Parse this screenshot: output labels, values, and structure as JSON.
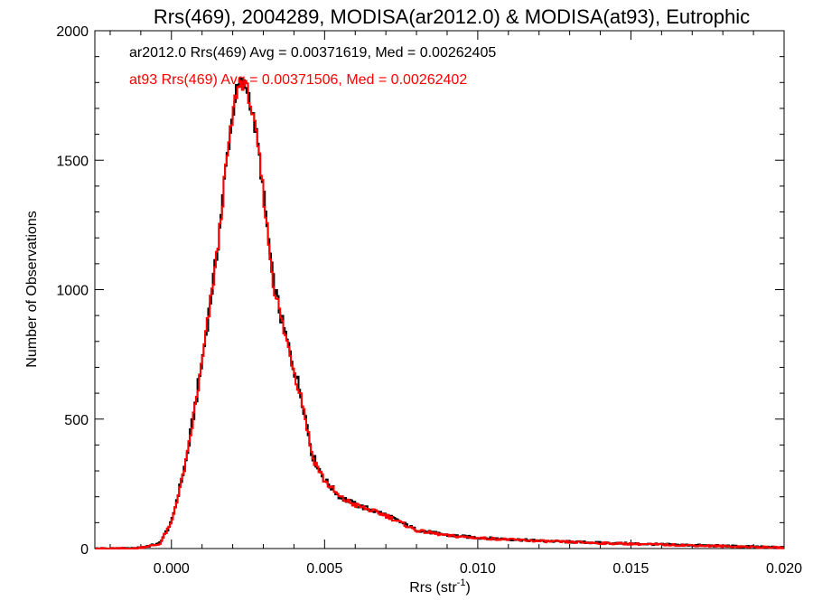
{
  "chart_data": {
    "type": "line",
    "title": "Rrs(469), 2004289, MODISA(ar2012.0) & MODISA(at93), Eutrophic",
    "xlabel": "Rrs (str",
    "xlabel_sup": "-1",
    "xlabel_end": ")",
    "ylabel": "Number of Observations",
    "xlim": [
      -0.0025,
      0.02
    ],
    "ylim": [
      0,
      2000
    ],
    "x_ticks": [
      0.0,
      0.005,
      0.01,
      0.015,
      0.02
    ],
    "x_tick_labels": [
      "0.000",
      "0.005",
      "0.010",
      "0.015",
      "0.020"
    ],
    "y_ticks": [
      0,
      500,
      1000,
      1500,
      2000
    ],
    "y_tick_labels": [
      "0",
      "500",
      "1000",
      "1500",
      "2000"
    ],
    "grid": false,
    "bin_width": 5e-05,
    "x_start": -0.0025,
    "annotations": [
      {
        "text": "ar2012.0 Rrs(469) Avg = 0.00371619, Med = 0.00262405",
        "color": "#000000"
      },
      {
        "text": "at93 Rrs(469) Avg = 0.00371506, Med = 0.00262402",
        "color": "#ff0000"
      }
    ],
    "series": [
      {
        "name": "ar2012.0",
        "color": "#000000",
        "keypoints": [
          [
            -0.0025,
            0
          ],
          [
            -0.0012,
            0
          ],
          [
            -0.0004,
            18
          ],
          [
            0.0,
            100
          ],
          [
            0.0005,
            350
          ],
          [
            0.001,
            720
          ],
          [
            0.0015,
            1150
          ],
          [
            0.0018,
            1500
          ],
          [
            0.0021,
            1760
          ],
          [
            0.0023,
            1800
          ],
          [
            0.0025,
            1770
          ],
          [
            0.0028,
            1580
          ],
          [
            0.003,
            1380
          ],
          [
            0.0033,
            1050
          ],
          [
            0.0036,
            880
          ],
          [
            0.004,
            700
          ],
          [
            0.0043,
            560
          ],
          [
            0.0046,
            360
          ],
          [
            0.005,
            265
          ],
          [
            0.0055,
            200
          ],
          [
            0.006,
            170
          ],
          [
            0.007,
            130
          ],
          [
            0.008,
            72
          ],
          [
            0.009,
            52
          ],
          [
            0.01,
            42
          ],
          [
            0.012,
            30
          ],
          [
            0.014,
            22
          ],
          [
            0.016,
            16
          ],
          [
            0.018,
            10
          ],
          [
            0.02,
            4
          ]
        ]
      },
      {
        "name": "at93",
        "color": "#ff0000",
        "keypoints": [
          [
            -0.0025,
            0
          ],
          [
            -0.0012,
            0
          ],
          [
            -0.0004,
            16
          ],
          [
            0.0,
            98
          ],
          [
            0.0005,
            345
          ],
          [
            0.001,
            715
          ],
          [
            0.0015,
            1145
          ],
          [
            0.0018,
            1495
          ],
          [
            0.0021,
            1755
          ],
          [
            0.0023,
            1805
          ],
          [
            0.0025,
            1765
          ],
          [
            0.0028,
            1575
          ],
          [
            0.003,
            1375
          ],
          [
            0.0033,
            1045
          ],
          [
            0.0036,
            875
          ],
          [
            0.004,
            695
          ],
          [
            0.0043,
            555
          ],
          [
            0.0046,
            355
          ],
          [
            0.005,
            262
          ],
          [
            0.0055,
            198
          ],
          [
            0.006,
            168
          ],
          [
            0.007,
            128
          ],
          [
            0.008,
            70
          ],
          [
            0.009,
            50
          ],
          [
            0.01,
            41
          ],
          [
            0.012,
            29
          ],
          [
            0.014,
            21
          ],
          [
            0.016,
            15
          ],
          [
            0.018,
            9
          ],
          [
            0.02,
            3
          ]
        ]
      }
    ]
  }
}
